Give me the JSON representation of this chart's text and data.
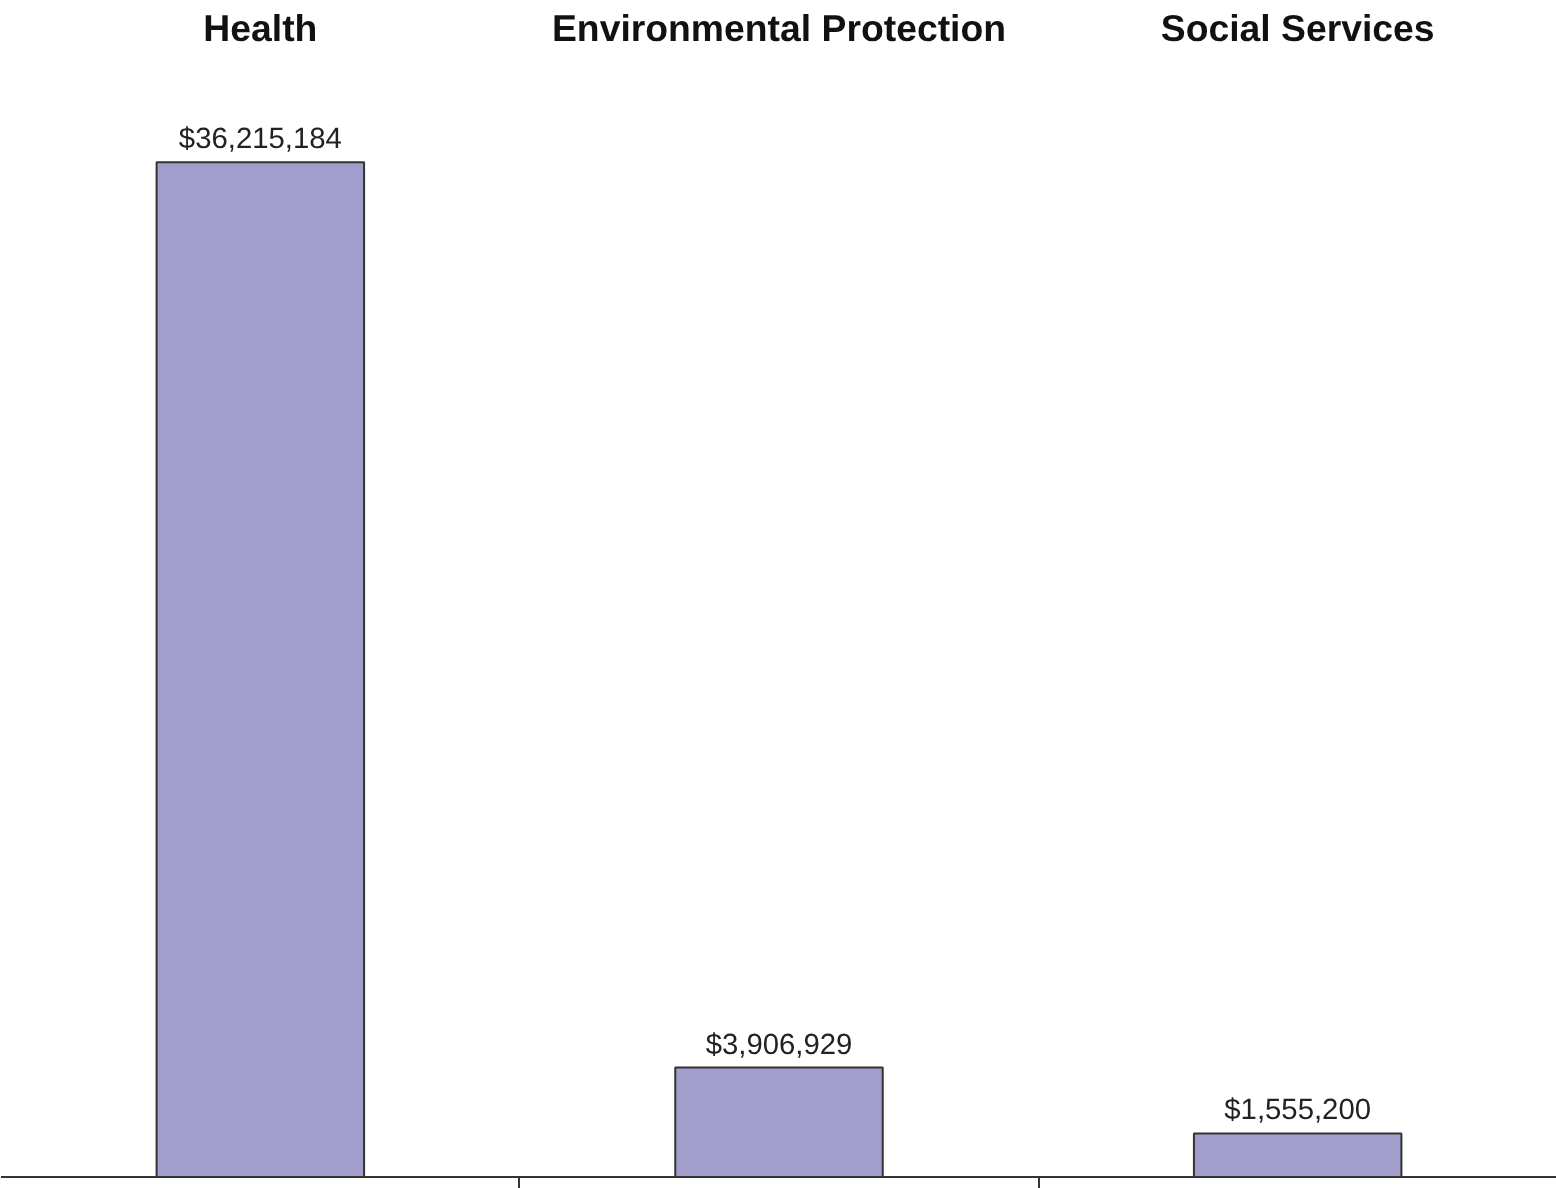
{
  "chart_data": {
    "type": "bar",
    "categories": [
      "Health",
      "Environmental Protection",
      "Social Services"
    ],
    "values": [
      36215184,
      3906929,
      1555200
    ],
    "value_labels": [
      "$36,215,184",
      "$3,906,929",
      "$1,555,200"
    ],
    "color": "#a29ecc",
    "grid": false
  }
}
